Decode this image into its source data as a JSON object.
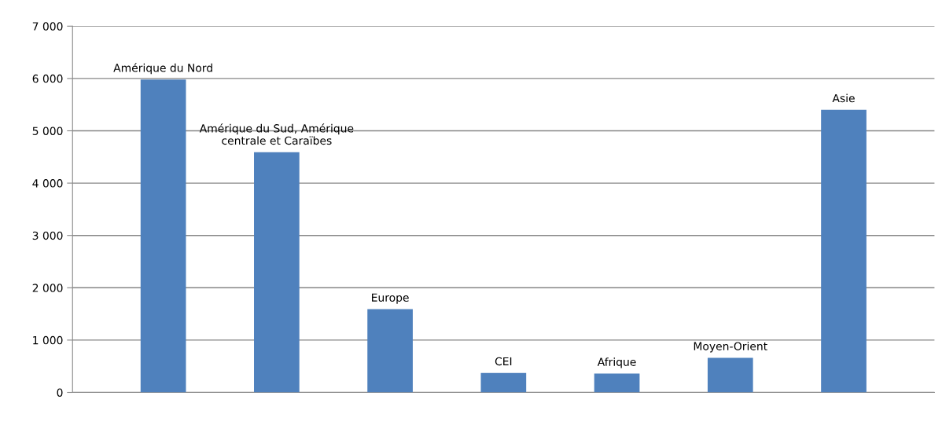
{
  "chart_data": {
    "type": "bar",
    "categories": [
      "Amérique du Nord",
      "Amérique du Sud, Amérique\ncentrale et Caraïbes",
      "Europe",
      "CEI",
      "Afrique",
      "Moyen-Orient",
      "Asie"
    ],
    "values": [
      5980,
      4590,
      1590,
      370,
      360,
      660,
      5400
    ],
    "color": "#4f81bd",
    "ylim": [
      0,
      7000
    ],
    "yticks": [
      {
        "value": 0,
        "label": "0"
      },
      {
        "value": 1000,
        "label": "1 000"
      },
      {
        "value": 2000,
        "label": "2 000"
      },
      {
        "value": 3000,
        "label": "3 000"
      },
      {
        "value": 4000,
        "label": "4 000"
      },
      {
        "value": 5000,
        "label": "5 000"
      },
      {
        "value": 6000,
        "label": "6 000"
      },
      {
        "value": 7000,
        "label": "7 000"
      }
    ],
    "grid": "y",
    "tick_labels": "y"
  }
}
